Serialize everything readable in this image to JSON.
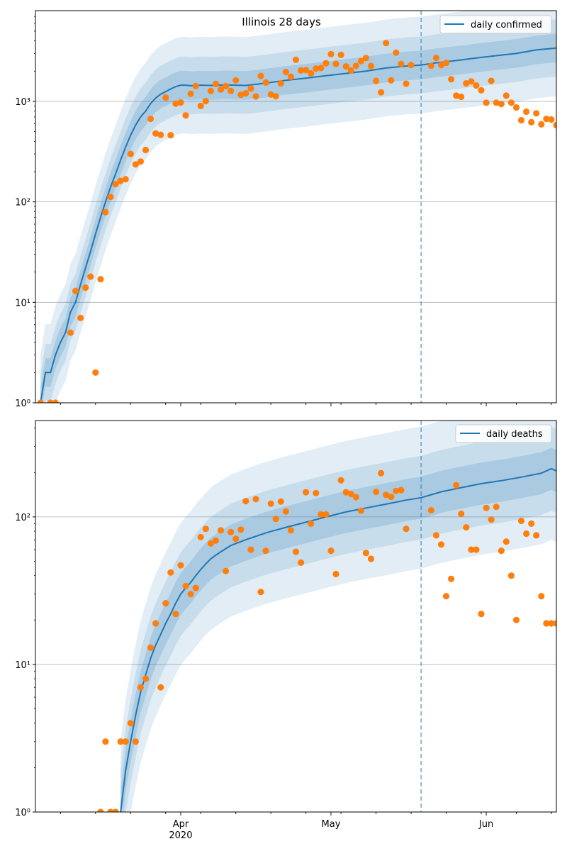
{
  "chart_data": [
    {
      "type": "line",
      "title": "Illinois 28 days",
      "yscale": "log",
      "ylim": [
        1,
        8000
      ],
      "xlim": [
        "2020-03-03",
        "2020-06-15"
      ],
      "y_ticks": [
        {
          "value": 1,
          "label": "10⁰"
        },
        {
          "value": 10,
          "label": "10¹"
        },
        {
          "value": 100,
          "label": "10²"
        },
        {
          "value": 1000,
          "label": "10³"
        }
      ],
      "grid": "y-major",
      "legend": "top-right",
      "forecast_start": "2020-05-19",
      "series": [
        {
          "name": "daily confirmed",
          "kind": "line",
          "color": "#1f77b4",
          "x": [
            "2020-03-04",
            "2020-03-05",
            "2020-03-06",
            "2020-03-07",
            "2020-03-08",
            "2020-03-09",
            "2020-03-10",
            "2020-03-11",
            "2020-03-12",
            "2020-03-13",
            "2020-03-14",
            "2020-03-15",
            "2020-03-16",
            "2020-03-17",
            "2020-03-18",
            "2020-03-19",
            "2020-03-20",
            "2020-03-21",
            "2020-03-22",
            "2020-03-23",
            "2020-03-24",
            "2020-03-25",
            "2020-03-26",
            "2020-03-27",
            "2020-03-28",
            "2020-03-29",
            "2020-03-30",
            "2020-03-31",
            "2020-04-01",
            "2020-04-02",
            "2020-04-03",
            "2020-04-04",
            "2020-04-05",
            "2020-04-07",
            "2020-04-10",
            "2020-04-14",
            "2020-04-18",
            "2020-04-22",
            "2020-04-26",
            "2020-04-30",
            "2020-05-04",
            "2020-05-08",
            "2020-05-12",
            "2020-05-16",
            "2020-05-19",
            "2020-05-22",
            "2020-05-26",
            "2020-05-30",
            "2020-06-03",
            "2020-06-07",
            "2020-06-11",
            "2020-06-15"
          ],
          "values": [
            1,
            2,
            2,
            3,
            4,
            5,
            8,
            10,
            15,
            22,
            32,
            48,
            70,
            100,
            140,
            190,
            260,
            350,
            460,
            580,
            700,
            800,
            950,
            1080,
            1180,
            1250,
            1330,
            1400,
            1450,
            1450,
            1430,
            1440,
            1450,
            1440,
            1460,
            1440,
            1520,
            1620,
            1700,
            1800,
            1900,
            2000,
            2150,
            2250,
            2300,
            2420,
            2550,
            2700,
            2850,
            3000,
            3250,
            3400
          ]
        },
        {
          "name": "",
          "kind": "scatter",
          "color": "#ff7f0e",
          "x": [
            "2020-03-04",
            "2020-03-06",
            "2020-03-07",
            "2020-03-10",
            "2020-03-11",
            "2020-03-12",
            "2020-03-13",
            "2020-03-14",
            "2020-03-15",
            "2020-03-16",
            "2020-03-17",
            "2020-03-18",
            "2020-03-19",
            "2020-03-20",
            "2020-03-21",
            "2020-03-22",
            "2020-03-23",
            "2020-03-24",
            "2020-03-25",
            "2020-03-26",
            "2020-03-27",
            "2020-03-28",
            "2020-03-29",
            "2020-03-30",
            "2020-03-31",
            "2020-04-01",
            "2020-04-02",
            "2020-04-03",
            "2020-04-04",
            "2020-04-05",
            "2020-04-06",
            "2020-04-07",
            "2020-04-08",
            "2020-04-09",
            "2020-04-10",
            "2020-04-11",
            "2020-04-12",
            "2020-04-13",
            "2020-04-14",
            "2020-04-15",
            "2020-04-16",
            "2020-04-17",
            "2020-04-18",
            "2020-04-19",
            "2020-04-20",
            "2020-04-21",
            "2020-04-22",
            "2020-04-23",
            "2020-04-24",
            "2020-04-25",
            "2020-04-26",
            "2020-04-27",
            "2020-04-28",
            "2020-04-29",
            "2020-04-30",
            "2020-05-01",
            "2020-05-02",
            "2020-05-03",
            "2020-05-04",
            "2020-05-05",
            "2020-05-06",
            "2020-05-07",
            "2020-05-08",
            "2020-05-09",
            "2020-05-10",
            "2020-05-11",
            "2020-05-12",
            "2020-05-13",
            "2020-05-14",
            "2020-05-15",
            "2020-05-16",
            "2020-05-17",
            "2020-05-21",
            "2020-05-22",
            "2020-05-23",
            "2020-05-24",
            "2020-05-25",
            "2020-05-26",
            "2020-05-27",
            "2020-05-28",
            "2020-05-29",
            "2020-05-30",
            "2020-05-31",
            "2020-06-01",
            "2020-06-02",
            "2020-06-03",
            "2020-06-04",
            "2020-06-05",
            "2020-06-06",
            "2020-06-07",
            "2020-06-08",
            "2020-06-09",
            "2020-06-10",
            "2020-06-11",
            "2020-06-12",
            "2020-06-13",
            "2020-06-14",
            "2020-06-15"
          ],
          "values": [
            1,
            1,
            1,
            5,
            13,
            7,
            14,
            18,
            2,
            17,
            79,
            112,
            150,
            162,
            168,
            300,
            236,
            252,
            328,
            670,
            480,
            465,
            1090,
            460,
            950,
            975,
            725,
            1190,
            1420,
            900,
            1005,
            1270,
            1490,
            1315,
            1420,
            1270,
            1620,
            1165,
            1205,
            1340,
            1120,
            1790,
            1540,
            1170,
            1125,
            1510,
            1960,
            1760,
            2590,
            2030,
            2050,
            1900,
            2120,
            2150,
            2400,
            2950,
            2360,
            2900,
            2225,
            2030,
            2260,
            2520,
            2700,
            2250,
            1600,
            1230,
            3800,
            1620,
            3050,
            2360,
            1500,
            2300,
            2260,
            2700,
            2300,
            2420,
            1660,
            1140,
            1110,
            1510,
            1580,
            1440,
            1290,
            970,
            1600,
            970,
            940,
            1140,
            970,
            870,
            650,
            790,
            620,
            760,
            590,
            670,
            660,
            580
          ]
        }
      ]
    },
    {
      "type": "line",
      "title": "",
      "yscale": "log",
      "ylim": [
        1,
        450
      ],
      "xlim": [
        "2020-03-03",
        "2020-06-15"
      ],
      "y_ticks": [
        {
          "value": 1,
          "label": "10⁰"
        },
        {
          "value": 10,
          "label": "10¹"
        },
        {
          "value": 100,
          "label": "10²"
        }
      ],
      "x_ticks": [
        {
          "date": "2020-04-01",
          "label": "Apr",
          "sublabel": "2020"
        },
        {
          "date": "2020-05-01",
          "label": "May",
          "sublabel": ""
        },
        {
          "date": "2020-06-01",
          "label": "Jun",
          "sublabel": ""
        }
      ],
      "grid": "y-major",
      "legend": "top-right",
      "forecast_start": "2020-05-19",
      "series": [
        {
          "name": "daily deaths",
          "kind": "line",
          "color": "#1f77b4",
          "x": [
            "2020-03-20",
            "2020-03-21",
            "2020-03-22",
            "2020-03-23",
            "2020-03-24",
            "2020-03-25",
            "2020-03-26",
            "2020-03-27",
            "2020-03-28",
            "2020-03-29",
            "2020-03-30",
            "2020-03-31",
            "2020-04-01",
            "2020-04-02",
            "2020-04-03",
            "2020-04-04",
            "2020-04-05",
            "2020-04-06",
            "2020-04-07",
            "2020-04-08",
            "2020-04-09",
            "2020-04-11",
            "2020-04-14",
            "2020-04-18",
            "2020-04-22",
            "2020-04-26",
            "2020-04-30",
            "2020-05-04",
            "2020-05-08",
            "2020-05-12",
            "2020-05-16",
            "2020-05-19",
            "2020-05-23",
            "2020-05-27",
            "2020-05-31",
            "2020-06-04",
            "2020-06-08",
            "2020-06-12",
            "2020-06-14",
            "2020-06-15"
          ],
          "values": [
            1,
            1.9,
            3,
            4.5,
            6.5,
            8.5,
            11,
            13.5,
            16,
            19,
            22,
            26,
            30,
            33,
            36,
            40,
            44,
            48,
            52,
            55,
            58,
            64,
            70,
            78,
            85,
            92,
            100,
            108,
            115,
            122,
            130,
            135,
            148,
            158,
            168,
            176,
            186,
            198,
            212,
            205
          ]
        },
        {
          "name": "",
          "kind": "scatter",
          "color": "#ff7f0e",
          "x": [
            "2020-03-16",
            "2020-03-17",
            "2020-03-18",
            "2020-03-19",
            "2020-03-20",
            "2020-03-21",
            "2020-03-22",
            "2020-03-23",
            "2020-03-24",
            "2020-03-25",
            "2020-03-26",
            "2020-03-27",
            "2020-03-28",
            "2020-03-29",
            "2020-03-30",
            "2020-03-31",
            "2020-04-01",
            "2020-04-02",
            "2020-04-03",
            "2020-04-04",
            "2020-04-05",
            "2020-04-06",
            "2020-04-07",
            "2020-04-08",
            "2020-04-09",
            "2020-04-10",
            "2020-04-11",
            "2020-04-12",
            "2020-04-13",
            "2020-04-14",
            "2020-04-15",
            "2020-04-16",
            "2020-04-17",
            "2020-04-18",
            "2020-04-19",
            "2020-04-20",
            "2020-04-21",
            "2020-04-22",
            "2020-04-23",
            "2020-04-24",
            "2020-04-25",
            "2020-04-26",
            "2020-04-27",
            "2020-04-28",
            "2020-04-29",
            "2020-04-30",
            "2020-05-01",
            "2020-05-02",
            "2020-05-03",
            "2020-05-04",
            "2020-05-05",
            "2020-05-06",
            "2020-05-07",
            "2020-05-08",
            "2020-05-09",
            "2020-05-10",
            "2020-05-11",
            "2020-05-12",
            "2020-05-13",
            "2020-05-14",
            "2020-05-15",
            "2020-05-16",
            "2020-05-21",
            "2020-05-22",
            "2020-05-23",
            "2020-05-24",
            "2020-05-25",
            "2020-05-26",
            "2020-05-27",
            "2020-05-28",
            "2020-05-29",
            "2020-05-30",
            "2020-05-31",
            "2020-06-01",
            "2020-06-02",
            "2020-06-03",
            "2020-06-04",
            "2020-06-05",
            "2020-06-06",
            "2020-06-07",
            "2020-06-08",
            "2020-06-09",
            "2020-06-10",
            "2020-06-11",
            "2020-06-12",
            "2020-06-13",
            "2020-06-14",
            "2020-06-15"
          ],
          "values": [
            1,
            3,
            1,
            1,
            3,
            3,
            4,
            3,
            7,
            8,
            13,
            19,
            7,
            26,
            42,
            22,
            47,
            34,
            30,
            33,
            73,
            83,
            66,
            69,
            81,
            43,
            79,
            71,
            82,
            128,
            60,
            132,
            31,
            59,
            123,
            97,
            127,
            109,
            81,
            58,
            49,
            147,
            90,
            145,
            104,
            104,
            59,
            41,
            177,
            147,
            143,
            136,
            110,
            57,
            52,
            148,
            198,
            141,
            137,
            150,
            152,
            83,
            111,
            75,
            65,
            29,
            38,
            164,
            105,
            85,
            60,
            60,
            22,
            115,
            96,
            117,
            59,
            68,
            40,
            20,
            94,
            77,
            90,
            75,
            29,
            19,
            19,
            19
          ]
        }
      ]
    }
  ]
}
